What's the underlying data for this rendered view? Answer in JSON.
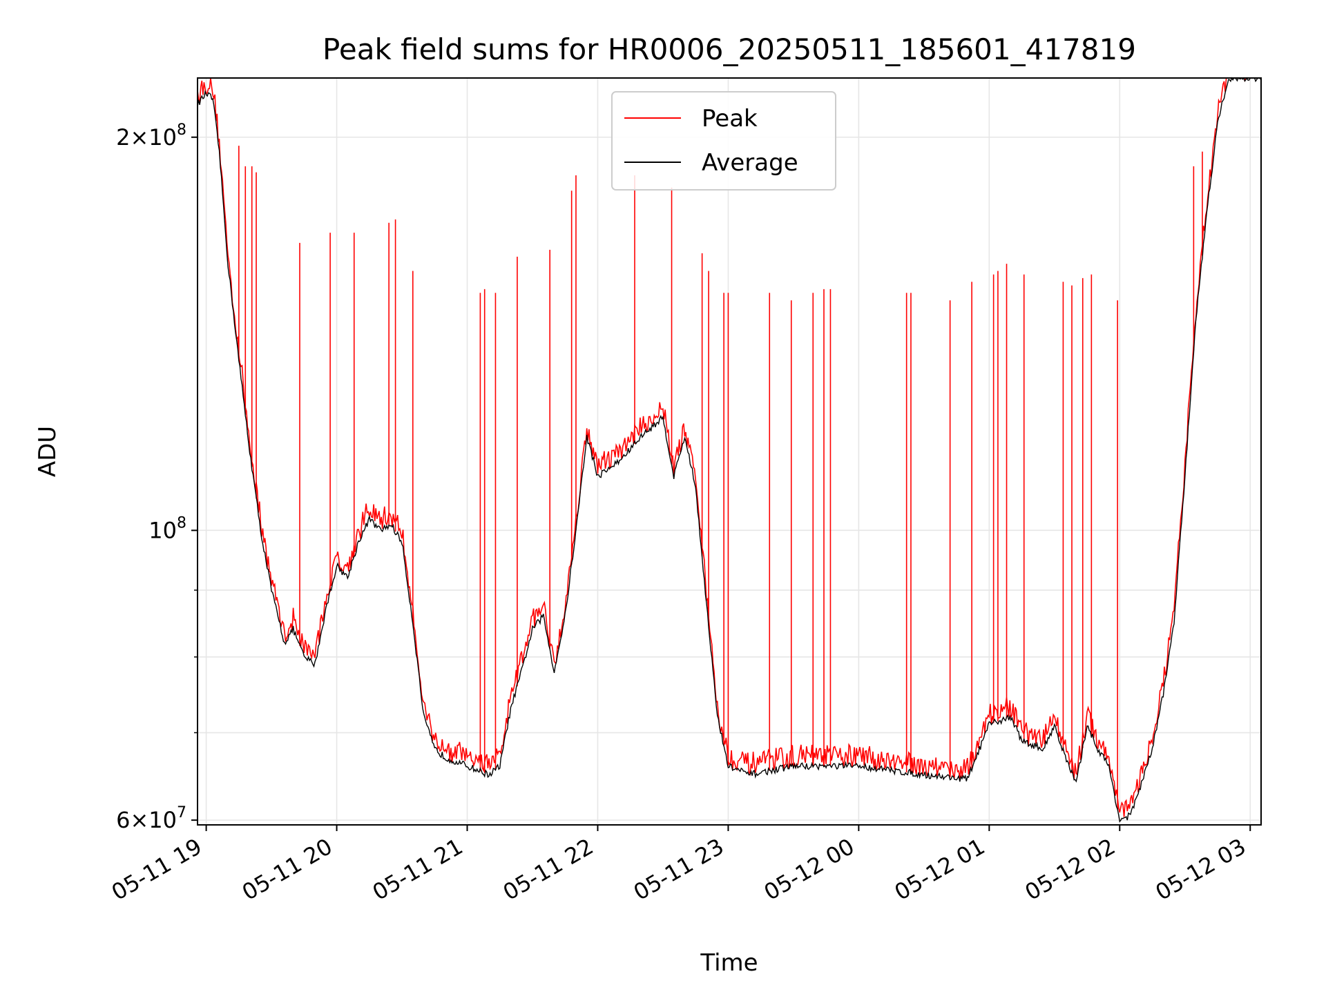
{
  "chart_data": {
    "type": "line",
    "title": "Peak field sums for HR0006_20250511_185601_417819",
    "xlabel": "Time",
    "ylabel": "ADU",
    "y_scale": "log",
    "xlim": [
      "2025-05-11 18:56",
      "2025-05-12 03:05"
    ],
    "ylim": [
      59500000,
      222000000
    ],
    "x_ticks": [
      "05-11 19",
      "05-11 20",
      "05-11 21",
      "05-11 22",
      "05-11 23",
      "05-12 00",
      "05-12 01",
      "05-12 02",
      "05-12 03"
    ],
    "y_ticks": [
      {
        "label_base": "2×10",
        "label_exp": "8",
        "value": 200000000
      },
      {
        "label_base": "10",
        "label_exp": "8",
        "value": 100000000
      },
      {
        "label_base": "6×10",
        "label_exp": "7",
        "value": 60000000
      }
    ],
    "y_minor_ticks": [
      70000000,
      80000000,
      90000000
    ],
    "grid": true,
    "legend": {
      "placement": "upper center"
    },
    "series": [
      {
        "name": "Peak",
        "color": "#ff0000"
      },
      {
        "name": "Average",
        "color": "#000000"
      }
    ],
    "average_points": [
      [
        "2025-05-11 18:56",
        212000000
      ],
      [
        "2025-05-11 19:00",
        216000000
      ],
      [
        "2025-05-11 19:03",
        214000000
      ],
      [
        "2025-05-11 19:06",
        195000000
      ],
      [
        "2025-05-11 19:10",
        160000000
      ],
      [
        "2025-05-11 19:15",
        135000000
      ],
      [
        "2025-05-11 19:20",
        115000000
      ],
      [
        "2025-05-11 19:25",
        100000000
      ],
      [
        "2025-05-11 19:30",
        90000000
      ],
      [
        "2025-05-11 19:36",
        82000000
      ],
      [
        "2025-05-11 19:40",
        84000000
      ],
      [
        "2025-05-11 19:45",
        80000000
      ],
      [
        "2025-05-11 19:50",
        79000000
      ],
      [
        "2025-05-11 19:55",
        87000000
      ],
      [
        "2025-05-11 20:00",
        94000000
      ],
      [
        "2025-05-11 20:05",
        92000000
      ],
      [
        "2025-05-11 20:10",
        98000000
      ],
      [
        "2025-05-11 20:15",
        102000000
      ],
      [
        "2025-05-11 20:20",
        100000000
      ],
      [
        "2025-05-11 20:25",
        101000000
      ],
      [
        "2025-05-11 20:30",
        98000000
      ],
      [
        "2025-05-11 20:35",
        85000000
      ],
      [
        "2025-05-11 20:40",
        72000000
      ],
      [
        "2025-05-11 20:45",
        68000000
      ],
      [
        "2025-05-11 20:50",
        67000000
      ],
      [
        "2025-05-11 21:00",
        66000000
      ],
      [
        "2025-05-11 21:10",
        65000000
      ],
      [
        "2025-05-11 21:15",
        66000000
      ],
      [
        "2025-05-11 21:20",
        73000000
      ],
      [
        "2025-05-11 21:25",
        78000000
      ],
      [
        "2025-05-11 21:30",
        84000000
      ],
      [
        "2025-05-11 21:35",
        86000000
      ],
      [
        "2025-05-11 21:40",
        78000000
      ],
      [
        "2025-05-11 21:45",
        86000000
      ],
      [
        "2025-05-11 21:50",
        100000000
      ],
      [
        "2025-05-11 21:55",
        118000000
      ],
      [
        "2025-05-11 22:00",
        110000000
      ],
      [
        "2025-05-11 22:10",
        113000000
      ],
      [
        "2025-05-11 22:20",
        118000000
      ],
      [
        "2025-05-11 22:25",
        120000000
      ],
      [
        "2025-05-11 22:30",
        122000000
      ],
      [
        "2025-05-11 22:35",
        110000000
      ],
      [
        "2025-05-11 22:40",
        118000000
      ],
      [
        "2025-05-11 22:45",
        108000000
      ],
      [
        "2025-05-11 22:50",
        88000000
      ],
      [
        "2025-05-11 22:55",
        72000000
      ],
      [
        "2025-05-11 23:00",
        66000000
      ],
      [
        "2025-05-11 23:10",
        65000000
      ],
      [
        "2025-05-11 23:30",
        66000000
      ],
      [
        "2025-05-12 00:00",
        66000000
      ],
      [
        "2025-05-12 00:30",
        65000000
      ],
      [
        "2025-05-12 00:50",
        64500000
      ],
      [
        "2025-05-12 01:00",
        71000000
      ],
      [
        "2025-05-12 01:10",
        72000000
      ],
      [
        "2025-05-12 01:15",
        69000000
      ],
      [
        "2025-05-12 01:25",
        68000000
      ],
      [
        "2025-05-12 01:30",
        71000000
      ],
      [
        "2025-05-12 01:35",
        67000000
      ],
      [
        "2025-05-12 01:40",
        64000000
      ],
      [
        "2025-05-12 01:45",
        71000000
      ],
      [
        "2025-05-12 01:50",
        68000000
      ],
      [
        "2025-05-12 01:55",
        66000000
      ],
      [
        "2025-05-12 02:00",
        60000000
      ],
      [
        "2025-05-12 02:05",
        60500000
      ],
      [
        "2025-05-12 02:10",
        64000000
      ],
      [
        "2025-05-12 02:15",
        68000000
      ],
      [
        "2025-05-12 02:20",
        75000000
      ],
      [
        "2025-05-12 02:25",
        85000000
      ],
      [
        "2025-05-12 02:30",
        110000000
      ],
      [
        "2025-05-12 02:35",
        145000000
      ],
      [
        "2025-05-12 02:40",
        175000000
      ],
      [
        "2025-05-12 02:45",
        205000000
      ],
      [
        "2025-05-12 02:50",
        222000000
      ],
      [
        "2025-05-12 03:00",
        222000000
      ],
      [
        "2025-05-12 03:05",
        222000000
      ]
    ],
    "peak_spikes": [
      [
        "2025-05-11 19:15",
        197000000
      ],
      [
        "2025-05-11 19:18",
        190000000
      ],
      [
        "2025-05-11 19:21",
        190000000
      ],
      [
        "2025-05-11 19:23",
        188000000
      ],
      [
        "2025-05-11 19:43",
        166000000
      ],
      [
        "2025-05-11 19:57",
        169000000
      ],
      [
        "2025-05-11 20:08",
        169000000
      ],
      [
        "2025-05-11 20:24",
        172000000
      ],
      [
        "2025-05-11 20:27",
        173000000
      ],
      [
        "2025-05-11 20:35",
        158000000
      ],
      [
        "2025-05-11 21:06",
        152000000
      ],
      [
        "2025-05-11 21:08",
        153000000
      ],
      [
        "2025-05-11 21:13",
        152000000
      ],
      [
        "2025-05-11 21:23",
        162000000
      ],
      [
        "2025-05-11 21:38",
        164000000
      ],
      [
        "2025-05-11 21:48",
        182000000
      ],
      [
        "2025-05-11 21:50",
        187000000
      ],
      [
        "2025-05-11 22:17",
        187000000
      ],
      [
        "2025-05-11 22:34",
        183000000
      ],
      [
        "2025-05-11 22:48",
        163000000
      ],
      [
        "2025-05-11 22:51",
        158000000
      ],
      [
        "2025-05-11 22:58",
        152000000
      ],
      [
        "2025-05-11 23:00",
        152000000
      ],
      [
        "2025-05-11 23:19",
        152000000
      ],
      [
        "2025-05-11 23:29",
        150000000
      ],
      [
        "2025-05-11 23:39",
        152000000
      ],
      [
        "2025-05-11 23:44",
        153000000
      ],
      [
        "2025-05-11 23:47",
        153000000
      ],
      [
        "2025-05-12 00:22",
        152000000
      ],
      [
        "2025-05-12 00:24",
        152000000
      ],
      [
        "2025-05-12 00:42",
        150000000
      ],
      [
        "2025-05-12 00:52",
        155000000
      ],
      [
        "2025-05-12 01:02",
        157000000
      ],
      [
        "2025-05-12 01:04",
        158000000
      ],
      [
        "2025-05-12 01:08",
        160000000
      ],
      [
        "2025-05-12 01:16",
        157000000
      ],
      [
        "2025-05-12 01:34",
        155000000
      ],
      [
        "2025-05-12 01:38",
        154000000
      ],
      [
        "2025-05-12 01:43",
        156000000
      ],
      [
        "2025-05-12 01:47",
        157000000
      ],
      [
        "2025-05-12 01:59",
        150000000
      ],
      [
        "2025-05-12 02:34",
        190000000
      ],
      [
        "2025-05-12 02:38",
        195000000
      ]
    ]
  }
}
